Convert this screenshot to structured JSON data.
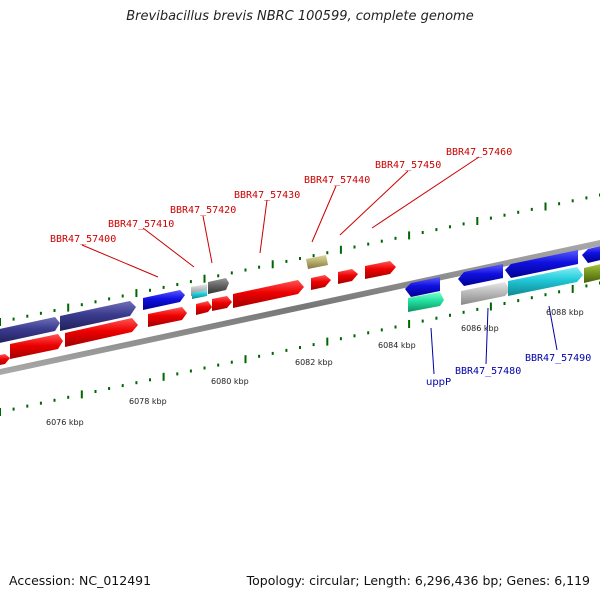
{
  "header": {
    "title": "Brevibacillus brevis NBRC 100599, complete genome"
  },
  "footer": {
    "accession": "Accession: NC_012491",
    "summary": "Topology: circular; Length: 6,296,436 bp; Genes: 6,119"
  },
  "scale": {
    "ticks": [
      "6076 kbp",
      "6078 kbp",
      "6080 kbp",
      "6082 kbp",
      "6084 kbp",
      "6086 kbp",
      "6088 kbp"
    ]
  },
  "upper_labels": [
    "BBR47_57400",
    "BBR47_57410",
    "BBR47_57420",
    "BBR47_57430",
    "BBR47_57440",
    "BBR47_57450",
    "BBR47_57460"
  ],
  "lower_labels": [
    "uppP",
    "BBR47_57480",
    "BBR47_57490"
  ],
  "colors": {
    "red": "#ee0000",
    "blue": "#1010e0",
    "navy": "#3b3b8f",
    "cyan": "#20c8d8",
    "green": "#20e0a0",
    "olive": "#7a9a20",
    "gray": "#bbbbbb",
    "khaki": "#b8b070",
    "tick": "#006600",
    "backbone": "#888888"
  }
}
